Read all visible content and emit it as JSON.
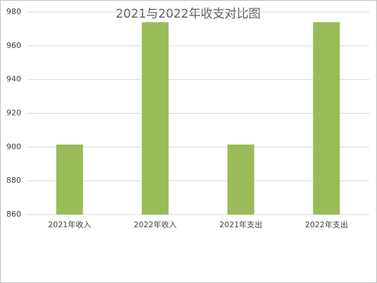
{
  "chart_data": {
    "type": "bar",
    "title": "2021与2022年收支对比图",
    "categories": [
      "2021年收入",
      "2022年收入",
      "2021年支出",
      "2022年支出"
    ],
    "values": [
      901.5,
      974,
      901.5,
      974
    ],
    "color": "#9bbb59",
    "ylim": [
      860,
      980
    ],
    "yticks": [
      860,
      880,
      900,
      920,
      940,
      960,
      980
    ],
    "grid": true
  }
}
